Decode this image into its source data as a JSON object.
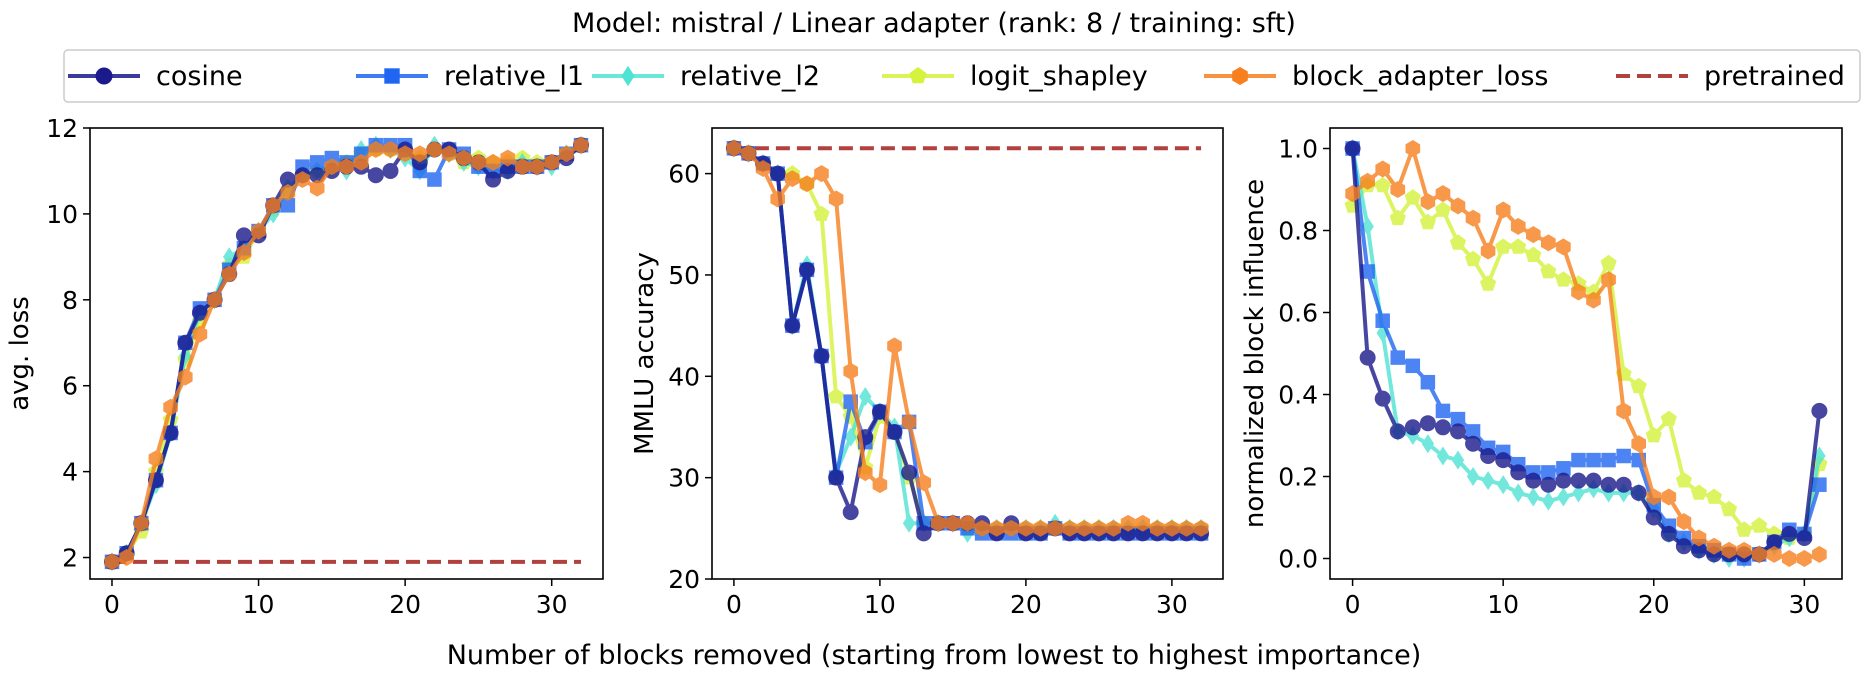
{
  "suptitle": "Model: mistral / Linear adapter (rank: 8 / training: sft)",
  "supxlabel": "Number of blocks removed (starting from lowest to highest importance)",
  "legend": {
    "placement": "top-center",
    "entries": [
      {
        "label": "cosine",
        "color": "#1a1a8c",
        "marker": "circle",
        "style": "solid"
      },
      {
        "label": "relative_l1",
        "color": "#2166f2",
        "marker": "square",
        "style": "solid"
      },
      {
        "label": "relative_l2",
        "color": "#4fe3d4",
        "marker": "diamond",
        "style": "solid"
      },
      {
        "label": "logit_shapley",
        "color": "#d5f23c",
        "marker": "pentagon",
        "style": "solid"
      },
      {
        "label": "block_adapter_loss",
        "color": "#f77f1e",
        "marker": "hexagon",
        "style": "solid"
      },
      {
        "label": "pretrained",
        "color": "#b0413e",
        "marker": "none",
        "style": "dashed"
      }
    ]
  },
  "chart_data": [
    {
      "type": "line",
      "ylabel": "avg. loss",
      "xlim": [
        -1.5,
        33.5
      ],
      "ylim": [
        1.5,
        12
      ],
      "xticks": [
        0,
        10,
        20,
        30
      ],
      "yticks": [
        2,
        4,
        6,
        8,
        10,
        12
      ],
      "grid": false,
      "x": [
        0,
        1,
        2,
        3,
        4,
        5,
        6,
        7,
        8,
        9,
        10,
        11,
        12,
        13,
        14,
        15,
        16,
        17,
        18,
        19,
        20,
        21,
        22,
        23,
        24,
        25,
        26,
        27,
        28,
        29,
        30,
        31,
        32
      ],
      "series": [
        {
          "name": "cosine",
          "values": [
            1.9,
            2.1,
            2.8,
            3.8,
            4.9,
            7.0,
            7.7,
            8.0,
            8.6,
            9.5,
            9.5,
            10.2,
            10.8,
            10.9,
            10.9,
            11.0,
            11.1,
            11.1,
            10.9,
            11.0,
            11.5,
            11.2,
            11.5,
            11.5,
            11.3,
            11.2,
            10.8,
            11.0,
            11.1,
            11.1,
            11.2,
            11.3,
            11.6
          ]
        },
        {
          "name": "relative_l1",
          "values": [
            1.9,
            2.1,
            2.8,
            3.8,
            4.9,
            7.0,
            7.8,
            8.0,
            8.7,
            9.2,
            9.6,
            10.2,
            10.2,
            11.1,
            11.2,
            11.3,
            11.2,
            11.4,
            11.6,
            11.6,
            11.6,
            11.0,
            10.8,
            11.5,
            11.4,
            11.1,
            11.0,
            11.1,
            11.1,
            11.1,
            11.2,
            11.4,
            11.6
          ]
        },
        {
          "name": "relative_l2",
          "values": [
            1.9,
            2.1,
            2.8,
            3.7,
            4.9,
            6.7,
            7.7,
            8.0,
            9.0,
            9.2,
            9.6,
            10.0,
            10.6,
            10.9,
            11.0,
            11.1,
            11.0,
            11.5,
            11.6,
            11.5,
            11.3,
            11.0,
            11.6,
            11.4,
            11.2,
            11.1,
            11.0,
            11.0,
            11.2,
            11.1,
            11.1,
            11.4,
            11.6
          ]
        },
        {
          "name": "logit_shapley",
          "values": [
            1.9,
            2.1,
            2.6,
            4.0,
            5.2,
            6.6,
            7.5,
            8.0,
            8.8,
            9.0,
            9.6,
            10.1,
            10.5,
            10.9,
            11.0,
            11.1,
            11.2,
            11.4,
            11.5,
            11.5,
            11.4,
            11.3,
            11.5,
            11.4,
            11.2,
            11.3,
            11.2,
            11.2,
            11.3,
            11.2,
            11.2,
            11.4,
            11.6
          ]
        },
        {
          "name": "block_adapter_loss",
          "values": [
            1.9,
            2.0,
            2.8,
            4.3,
            5.5,
            6.2,
            7.2,
            8.0,
            8.6,
            9.1,
            9.6,
            10.2,
            10.5,
            10.8,
            10.6,
            11.1,
            11.1,
            11.2,
            11.5,
            11.5,
            11.4,
            11.4,
            11.5,
            11.4,
            11.3,
            11.2,
            11.2,
            11.3,
            11.1,
            11.1,
            11.2,
            11.4,
            11.6
          ]
        }
      ],
      "baseline": {
        "name": "pretrained",
        "value": 1.9
      }
    },
    {
      "type": "line",
      "ylabel": "MMLU accuracy",
      "xlim": [
        -1.5,
        33.5
      ],
      "ylim": [
        20,
        64.5
      ],
      "xticks": [
        0,
        10,
        20,
        30
      ],
      "yticks": [
        20,
        30,
        40,
        50,
        60
      ],
      "grid": false,
      "x": [
        0,
        1,
        2,
        3,
        4,
        5,
        6,
        7,
        8,
        9,
        10,
        11,
        12,
        13,
        14,
        15,
        16,
        17,
        18,
        19,
        20,
        21,
        22,
        23,
        24,
        25,
        26,
        27,
        28,
        29,
        30,
        31,
        32
      ],
      "series": [
        {
          "name": "cosine",
          "values": [
            62.5,
            62.0,
            61.0,
            60.0,
            45.0,
            50.5,
            42.0,
            30.0,
            26.6,
            34.0,
            36.5,
            34.5,
            30.5,
            24.5,
            25.5,
            25.5,
            25.5,
            25.5,
            24.5,
            25.5,
            24.5,
            24.5,
            25.0,
            24.5,
            24.5,
            24.5,
            24.5,
            24.5,
            24.5,
            24.5,
            24.5,
            24.5,
            24.5
          ]
        },
        {
          "name": "relative_l1",
          "values": [
            62.5,
            62.0,
            61.0,
            60.0,
            45.0,
            50.5,
            42.0,
            30.0,
            37.5,
            33.5,
            36.5,
            34.5,
            35.5,
            25.5,
            25.5,
            25.5,
            25.0,
            24.5,
            24.5,
            24.5,
            24.5,
            24.5,
            25.0,
            24.5,
            24.5,
            24.5,
            24.5,
            24.5,
            24.5,
            24.5,
            24.5,
            24.5,
            24.5
          ]
        },
        {
          "name": "relative_l2",
          "values": [
            62.5,
            62.0,
            61.0,
            60.0,
            45.0,
            51.0,
            42.0,
            30.5,
            34.0,
            38.0,
            36.5,
            35.0,
            25.5,
            25.5,
            25.5,
            25.5,
            24.5,
            25.0,
            25.0,
            25.0,
            25.0,
            25.0,
            25.5,
            25.0,
            25.0,
            25.0,
            25.0,
            25.0,
            25.0,
            25.0,
            25.0,
            25.0,
            25.0
          ]
        },
        {
          "name": "logit_shapley",
          "values": [
            62.5,
            62.0,
            61.0,
            60.0,
            60.0,
            59.0,
            56.0,
            38.0,
            36.0,
            31.0,
            36.0,
            34.5,
            30.0,
            25.5,
            25.5,
            25.5,
            25.0,
            25.0,
            25.0,
            25.0,
            25.0,
            25.0,
            25.0,
            25.0,
            25.0,
            25.0,
            25.0,
            25.0,
            25.0,
            25.0,
            25.0,
            25.0,
            25.0
          ]
        },
        {
          "name": "block_adapter_loss",
          "values": [
            62.5,
            62.0,
            60.5,
            57.5,
            59.5,
            59.0,
            60.0,
            57.5,
            40.5,
            30.5,
            29.3,
            43.0,
            35.5,
            29.5,
            25.5,
            25.5,
            25.5,
            25.0,
            25.0,
            25.0,
            25.0,
            25.0,
            25.0,
            25.0,
            25.0,
            25.0,
            25.0,
            25.5,
            25.5,
            25.0,
            25.0,
            25.0,
            25.0
          ]
        }
      ],
      "baseline": {
        "name": "pretrained",
        "value": 62.5
      }
    },
    {
      "type": "line",
      "ylabel": "normalized block influence",
      "xlim": [
        -1.5,
        32.5
      ],
      "ylim": [
        -0.05,
        1.05
      ],
      "xticks": [
        0,
        10,
        20,
        30
      ],
      "yticks": [
        0.0,
        0.2,
        0.4,
        0.6,
        0.8,
        1.0
      ],
      "grid": false,
      "x": [
        0,
        1,
        2,
        3,
        4,
        5,
        6,
        7,
        8,
        9,
        10,
        11,
        12,
        13,
        14,
        15,
        16,
        17,
        18,
        19,
        20,
        21,
        22,
        23,
        24,
        25,
        26,
        27,
        28,
        29,
        30,
        31
      ],
      "series": [
        {
          "name": "cosine",
          "values": [
            1.0,
            0.49,
            0.39,
            0.31,
            0.32,
            0.33,
            0.32,
            0.31,
            0.28,
            0.25,
            0.24,
            0.21,
            0.19,
            0.18,
            0.19,
            0.19,
            0.19,
            0.18,
            0.18,
            0.16,
            0.1,
            0.06,
            0.03,
            0.02,
            0.01,
            0.01,
            0.01,
            0.01,
            0.04,
            0.06,
            0.05,
            0.36
          ]
        },
        {
          "name": "relative_l1",
          "values": [
            1.0,
            0.7,
            0.58,
            0.49,
            0.47,
            0.43,
            0.36,
            0.34,
            0.31,
            0.27,
            0.26,
            0.23,
            0.21,
            0.21,
            0.22,
            0.24,
            0.24,
            0.24,
            0.25,
            0.24,
            0.13,
            0.08,
            0.05,
            0.03,
            0.02,
            0.01,
            0.0,
            0.01,
            0.04,
            0.07,
            0.06,
            0.18
          ]
        },
        {
          "name": "relative_l2",
          "values": [
            1.0,
            0.81,
            0.55,
            0.31,
            0.3,
            0.28,
            0.25,
            0.24,
            0.2,
            0.19,
            0.18,
            0.16,
            0.15,
            0.14,
            0.15,
            0.16,
            0.17,
            0.16,
            0.16,
            0.16,
            0.12,
            0.06,
            0.04,
            0.02,
            0.01,
            0.0,
            0.0,
            0.01,
            0.03,
            0.05,
            0.06,
            0.25
          ]
        },
        {
          "name": "logit_shapley",
          "values": [
            0.86,
            0.91,
            0.91,
            0.83,
            0.88,
            0.82,
            0.85,
            0.77,
            0.73,
            0.67,
            0.76,
            0.76,
            0.74,
            0.7,
            0.68,
            0.67,
            0.65,
            0.72,
            0.45,
            0.42,
            0.3,
            0.34,
            0.19,
            0.16,
            0.15,
            0.12,
            0.07,
            0.08,
            0.06,
            0.05,
            0.06,
            0.23
          ]
        },
        {
          "name": "block_adapter_loss",
          "values": [
            0.89,
            0.92,
            0.95,
            0.9,
            1.0,
            0.87,
            0.89,
            0.86,
            0.83,
            0.75,
            0.85,
            0.81,
            0.79,
            0.77,
            0.76,
            0.65,
            0.63,
            0.68,
            0.36,
            0.28,
            0.15,
            0.15,
            0.09,
            0.05,
            0.03,
            0.02,
            0.02,
            0.01,
            0.01,
            0.0,
            0.0,
            0.01
          ]
        }
      ]
    }
  ]
}
